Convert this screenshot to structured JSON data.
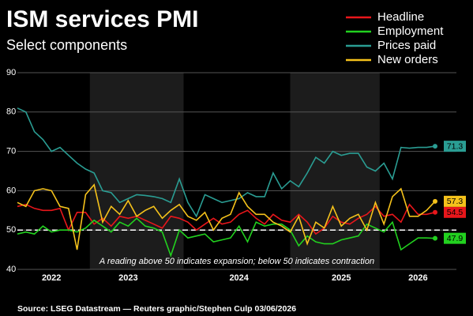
{
  "chart_data": {
    "type": "line",
    "title": "ISM services PMI",
    "subtitle": "Select components",
    "annotation": "A reading above 50 indicates expansion; below 50 indicates contraction",
    "source": "Source: LSEG Datastream — Reuters graphic/Stephen Culp 03/06/2026",
    "categories": [
      null,
      null,
      null,
      null,
      "2022",
      null,
      null,
      null,
      null,
      null,
      null,
      null,
      null,
      "2023",
      null,
      null,
      null,
      null,
      null,
      null,
      null,
      null,
      null,
      null,
      null,
      null,
      "2024",
      null,
      null,
      null,
      null,
      null,
      null,
      null,
      null,
      null,
      null,
      null,
      "2025",
      null,
      null,
      null,
      null,
      null,
      null,
      null,
      null,
      "2026",
      null,
      null
    ],
    "series": [
      {
        "name": "Headline",
        "color": "#e8161b",
        "values": [
          56,
          56.5,
          55.5,
          55,
          55,
          55.5,
          50,
          54.5,
          54.5,
          51.5,
          53,
          51,
          53.5,
          53,
          53.5,
          52.5,
          51.5,
          50.5,
          53.5,
          53,
          52,
          50,
          51.5,
          53,
          51.5,
          52,
          54,
          55,
          53,
          51.5,
          54,
          52.5,
          52,
          54,
          52,
          49,
          50.5,
          53.5,
          52,
          51.5,
          53,
          54,
          56,
          53.5,
          54,
          52,
          56.5,
          54,
          54,
          54.5
        ]
      },
      {
        "name": "Employment",
        "color": "#22d11f",
        "values": [
          49,
          49.5,
          49,
          51,
          49.5,
          50,
          50,
          49.5,
          50.5,
          52.5,
          51,
          49.5,
          52,
          51,
          53,
          51,
          50.5,
          49.5,
          43.5,
          50,
          48,
          48.5,
          49,
          47,
          47.5,
          48,
          51,
          47,
          52,
          51,
          51.5,
          51.5,
          50,
          46,
          48.5,
          47,
          46.5,
          46.5,
          47.5,
          48,
          48.5,
          51.5,
          50.5,
          49.5,
          52,
          45,
          46.5,
          48,
          48,
          47.9
        ]
      },
      {
        "name": "Prices paid",
        "color": "#2a9d93",
        "values": [
          81,
          80,
          75,
          73,
          70,
          71,
          69,
          67,
          65.5,
          64.5,
          60,
          59.5,
          57,
          58,
          59,
          58.8,
          58.5,
          58,
          57,
          63,
          57,
          53.5,
          59,
          58,
          57,
          57.5,
          58,
          59.5,
          58.5,
          58.5,
          64.5,
          60.5,
          62.5,
          61,
          64.5,
          68.5,
          67,
          70,
          69,
          69.5,
          69.5,
          66,
          65,
          67,
          63,
          71,
          70.8,
          71,
          71,
          71.3
        ]
      },
      {
        "name": "New orders",
        "color": "#f5c21b",
        "values": [
          57,
          56,
          60,
          60.5,
          60,
          56,
          55.5,
          45,
          59,
          61.5,
          52,
          56,
          54,
          57.5,
          53.5,
          55,
          56,
          53,
          55,
          56.5,
          53.5,
          52.5,
          54.5,
          50,
          53,
          54,
          59.5,
          56,
          54,
          54,
          52,
          51,
          49.5,
          53.5,
          46.5,
          52,
          50.5,
          56,
          51,
          53,
          54,
          50,
          57,
          51.5,
          58.5,
          60.5,
          53.5,
          53.5,
          55,
          57.3
        ]
      }
    ],
    "reference_line": 50,
    "ylim": [
      40,
      90
    ],
    "yticks": [
      40,
      50,
      60,
      70,
      80,
      90
    ],
    "grid": true
  }
}
